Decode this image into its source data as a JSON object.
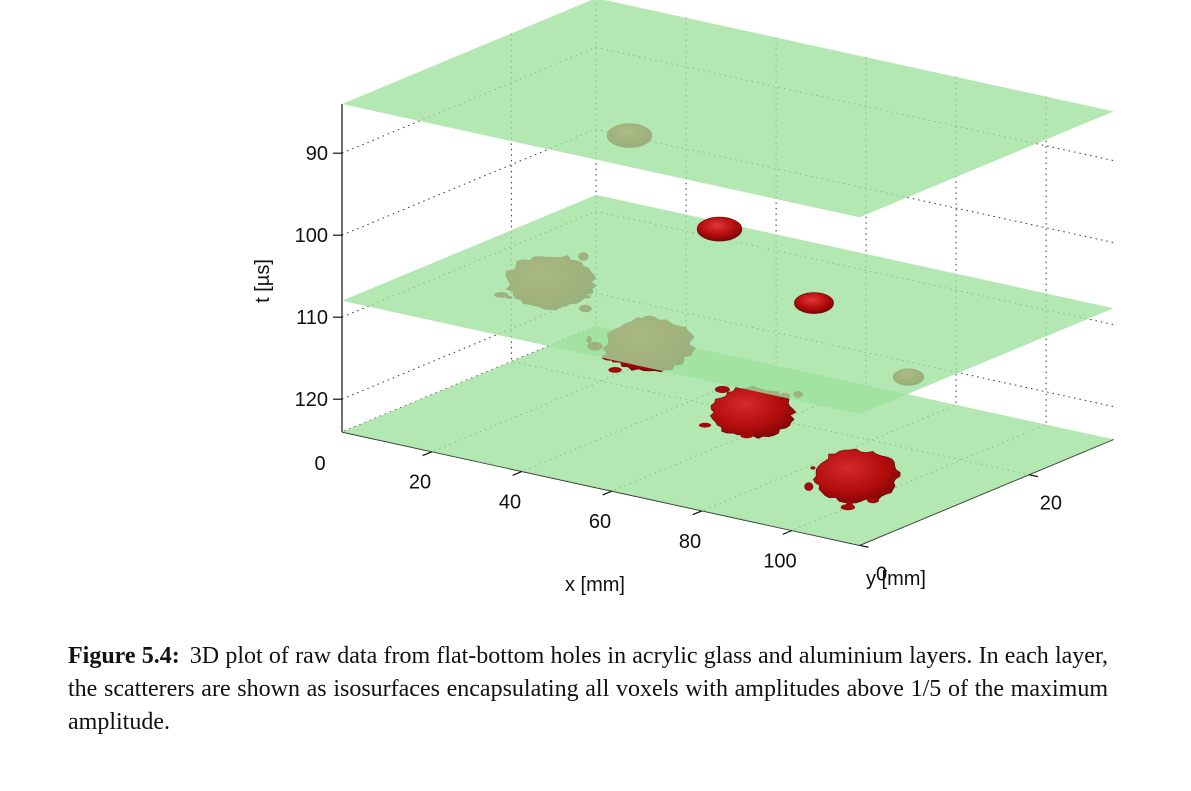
{
  "chart_data": {
    "type": "3d-isosurface",
    "title": "",
    "xlabel": "x [mm]",
    "ylabel": "y [mm]",
    "zlabel": "t [µs]",
    "x_ticks": [
      "20",
      "40",
      "60",
      "80",
      "100"
    ],
    "y_ticks": [
      "0",
      "20"
    ],
    "t_ticks": [
      "90",
      "100",
      "110",
      "120"
    ],
    "origin_tick": "0",
    "xlim": [
      0,
      115
    ],
    "ylim": [
      0,
      30
    ],
    "tlim": [
      84,
      124
    ],
    "t_axis_reversed": true,
    "layers": [
      {
        "name": "layer-plane-top",
        "t": 84,
        "color": "#9ee29e"
      },
      {
        "name": "layer-plane-middle",
        "t": 108,
        "color": "#9ee29e"
      },
      {
        "name": "layer-plane-bottom",
        "t": 124,
        "color": "#9ee29e"
      }
    ],
    "scatterers": [
      {
        "name": "flat-hole-1",
        "x": 30,
        "y": 18,
        "t": 92,
        "size": 0.8,
        "style": "smooth"
      },
      {
        "name": "flat-hole-2",
        "x": 50,
        "y": 18,
        "t": 101,
        "size": 0.8,
        "style": "smooth"
      },
      {
        "name": "flat-hole-3",
        "x": 71,
        "y": 18,
        "t": 107.5,
        "size": 0.7,
        "style": "smooth"
      },
      {
        "name": "flat-hole-4",
        "x": 92,
        "y": 18,
        "t": 114,
        "size": 0.55,
        "style": "smooth"
      },
      {
        "name": "aluminium-blob-1",
        "x": 18,
        "y": 15,
        "t": 110,
        "size": 1.55,
        "style": "rough"
      },
      {
        "name": "aluminium-blob-2",
        "x": 40,
        "y": 15,
        "t": 115,
        "size": 1.55,
        "style": "rough"
      },
      {
        "name": "aluminium-blob-3",
        "x": 63,
        "y": 15,
        "t": 120.5,
        "size": 1.45,
        "style": "rough"
      },
      {
        "name": "aluminium-blob-4",
        "x": 86,
        "y": 15,
        "t": 125.5,
        "size": 1.5,
        "style": "rough"
      }
    ],
    "colors": {
      "plane": "#9ee29e",
      "scatterer": "#b80e0e",
      "scatterer_highlight": "#e03a3a",
      "grid": "#333333"
    },
    "grid": true
  },
  "caption": {
    "label": "Figure 5.4:",
    "text": "3D plot of raw data from flat-bottom holes in acrylic glass and aluminium layers. In each layer, the scatterers are shown as isosurfaces encapsulating all voxels with amplitudes above 1/5 of the maximum amplitude."
  }
}
